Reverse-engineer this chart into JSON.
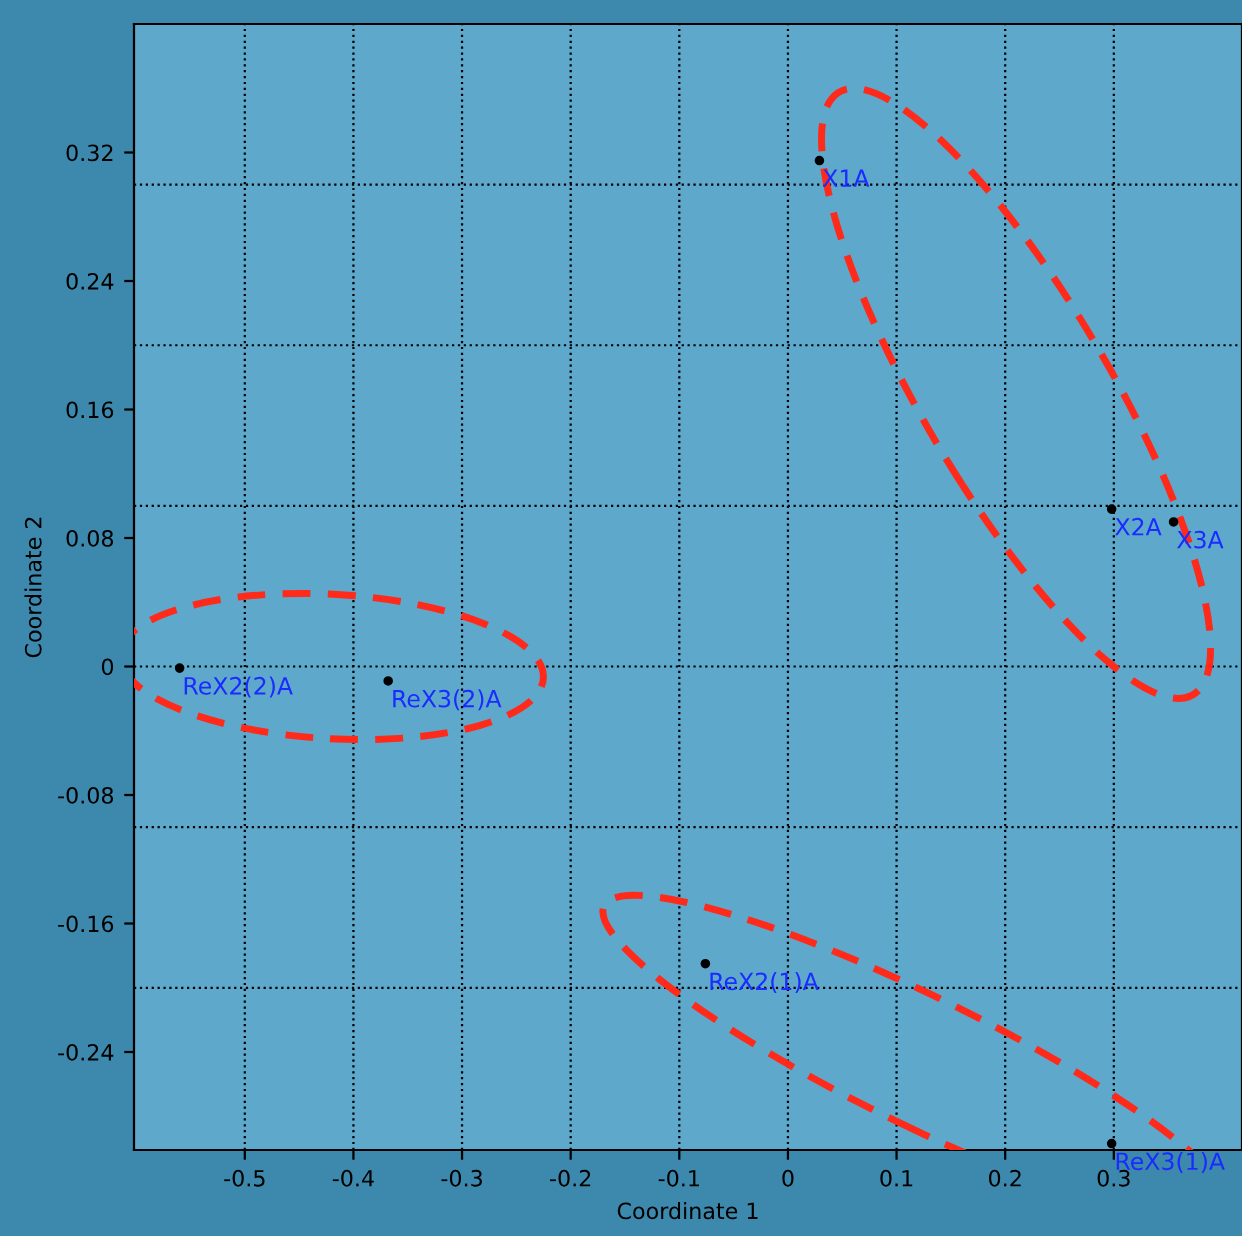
{
  "chart_data": {
    "type": "scatter",
    "xlabel": "Coordinate 1",
    "ylabel": "Coordinate 2",
    "x": [
      0.029,
      0.298,
      0.355,
      -0.56,
      -0.368,
      -0.076,
      0.298
    ],
    "series": [
      {
        "color": "#000000",
        "values": [
          0.315,
          0.098,
          0.09,
          -0.001,
          -0.009,
          -0.185,
          -0.297
        ]
      }
    ],
    "annotations": [
      {
        "text": "X1A",
        "x": 0.029,
        "y": 0.315
      },
      {
        "text": "X2A",
        "x": 0.298,
        "y": 0.098
      },
      {
        "text": "X3A",
        "x": 0.355,
        "y": 0.09
      },
      {
        "text": "ReX2(2)A",
        "x": -0.56,
        "y": -0.001
      },
      {
        "text": "ReX3(2)A",
        "x": -0.368,
        "y": -0.009
      },
      {
        "text": "ReX2(1)A",
        "x": -0.076,
        "y": -0.185
      },
      {
        "text": "ReX3(1)A",
        "x": 0.298,
        "y": -0.297
      }
    ],
    "xlim": [
      -0.602,
      0.418
    ],
    "ylim": [
      -0.301,
      0.4
    ],
    "xticks": [
      -0.5,
      -0.4,
      -0.3,
      -0.2,
      -0.1,
      0,
      0.1,
      0.2,
      0.3
    ],
    "yticks": [
      -0.24,
      -0.16,
      -0.08,
      0,
      0.08,
      0.16,
      0.24,
      0.32
    ],
    "grid": "x",
    "ref_lines": [
      {
        "axis": "y",
        "value": 0.3,
        "line_style": "dotted",
        "color": "#000000"
      },
      {
        "axis": "y",
        "value": 0.2,
        "line_style": "dotted",
        "color": "#000000"
      },
      {
        "axis": "y",
        "value": 0.1,
        "line_style": "dotted",
        "color": "#000000"
      },
      {
        "axis": "y",
        "value": 0,
        "line_style": "dotted",
        "color": "#000000"
      },
      {
        "axis": "y",
        "value": -0.1,
        "line_style": "dotted",
        "color": "#000000"
      },
      {
        "axis": "y",
        "value": -0.2,
        "line_style": "dotted",
        "color": "#000000"
      }
    ]
  }
}
